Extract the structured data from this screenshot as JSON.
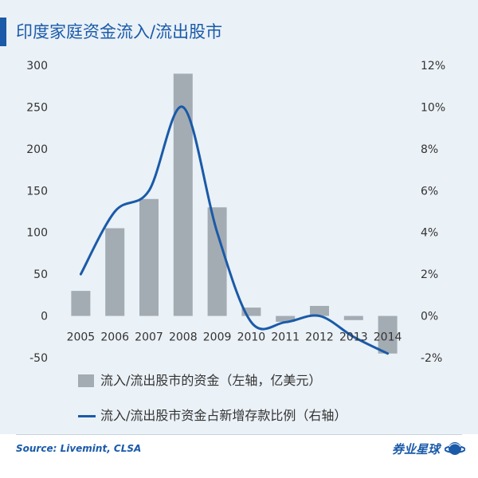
{
  "title": "印度家庭资金流入/流出股市",
  "legend": {
    "bar_label": "流入/流出股市的资金（左轴，亿美元）",
    "line_label": "流入/流出股市资金占新增存款比例（右轴）"
  },
  "source": "Source: Livemint, CLSA",
  "brand": "券业星球",
  "colors": {
    "accent": "#1a5aa8",
    "bar": "#a4acb3",
    "background": "#eaf1f7"
  },
  "chart_data": {
    "type": "bar",
    "categories": [
      "2005",
      "2006",
      "2007",
      "2008",
      "2009",
      "2010",
      "2011",
      "2012",
      "2013",
      "2014"
    ],
    "series": [
      {
        "name": "流入/流出股市的资金（左轴，亿美元）",
        "type": "bar",
        "axis": "left",
        "values": [
          30,
          105,
          140,
          290,
          130,
          10,
          -7,
          12,
          -5,
          -45
        ]
      },
      {
        "name": "流入/流出股市资金占新增存款比例（右轴）",
        "type": "line",
        "axis": "right",
        "smooth": true,
        "values": [
          2.0,
          5.0,
          6.0,
          10.0,
          4.0,
          -0.3,
          -0.3,
          0.0,
          -1.0,
          -1.8
        ]
      }
    ],
    "y_left": {
      "ticks": [
        "300",
        "250",
        "200",
        "150",
        "100",
        "50",
        "0",
        "-50"
      ],
      "ylim": [
        -50,
        300
      ]
    },
    "y_right": {
      "ticks": [
        "12%",
        "10%",
        "8%",
        "6%",
        "4%",
        "2%",
        "0%",
        "-2%"
      ],
      "ylim": [
        -2,
        12
      ]
    },
    "grid": false,
    "legend_position": "bottom"
  }
}
